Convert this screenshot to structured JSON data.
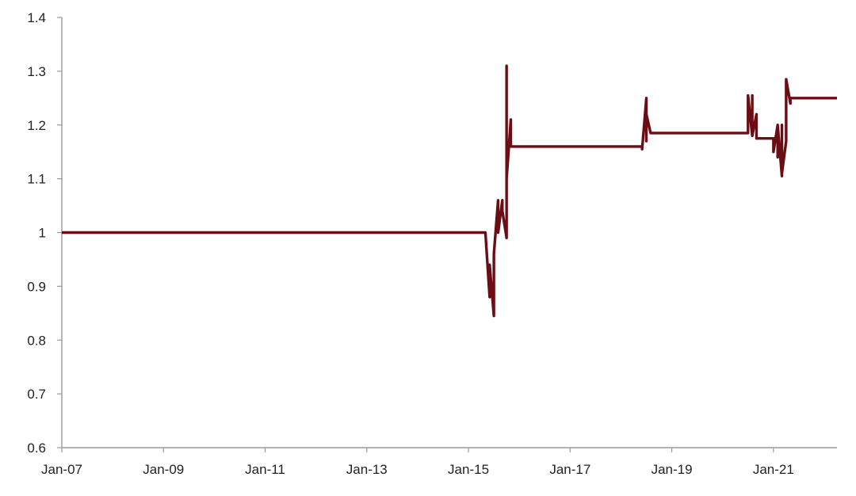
{
  "chart_data": {
    "type": "line",
    "title": "",
    "xlabel": "",
    "ylabel": "",
    "grid": false,
    "legend": "none",
    "line_color": "#6B0D14",
    "axis_color": "#9A9A9A",
    "xlim": [
      "2007-01",
      "2022-04"
    ],
    "ylim": [
      0.6,
      1.4
    ],
    "x_ticks": [
      "Jan-07",
      "Jan-09",
      "Jan-11",
      "Jan-13",
      "Jan-15",
      "Jan-17",
      "Jan-19",
      "Jan-21"
    ],
    "y_ticks": [
      "0.6",
      "0.7",
      "0.8",
      "0.9",
      "1",
      "1.1",
      "1.2",
      "1.3",
      "1.4"
    ],
    "series": [
      {
        "x": [
          "2007-01",
          "2015-05",
          "2015-06",
          "2015-06",
          "2015-07",
          "2015-07",
          "2015-07",
          "2015-08",
          "2015-08",
          "2015-08",
          "2015-09",
          "2015-09",
          "2015-10",
          "2015-10",
          "2015-10",
          "2015-11",
          "2015-11",
          "2015-11",
          "2015-12",
          "2015-12",
          "2018-06",
          "2018-06",
          "2018-07",
          "2018-07",
          "2018-07",
          "2018-08",
          "2018-08",
          "2018-08",
          "2020-07",
          "2020-07",
          "2020-08",
          "2020-08",
          "2020-08",
          "2020-09",
          "2020-09",
          "2020-10",
          "2020-10",
          "2020-10",
          "2021-01",
          "2021-01",
          "2021-02",
          "2021-02",
          "2021-02",
          "2021-03",
          "2021-03",
          "2021-03",
          "2021-04",
          "2021-04",
          "2021-05",
          "2021-05",
          "2021-06",
          "2022-04"
        ],
        "y": [
          1.0,
          1.0,
          0.88,
          0.94,
          0.845,
          0.92,
          0.96,
          1.06,
          1.06,
          1.0,
          1.06,
          1.04,
          0.99,
          1.31,
          1.1,
          1.21,
          1.16,
          1.16,
          1.16,
          1.16,
          1.16,
          1.155,
          1.25,
          1.17,
          1.22,
          1.185,
          1.185,
          1.185,
          1.185,
          1.255,
          1.18,
          1.255,
          1.18,
          1.22,
          1.175,
          1.175,
          1.175,
          1.175,
          1.175,
          1.15,
          1.2,
          1.14,
          1.2,
          1.105,
          1.2,
          1.11,
          1.17,
          1.285,
          1.24,
          1.25,
          1.25,
          1.25
        ]
      }
    ]
  }
}
